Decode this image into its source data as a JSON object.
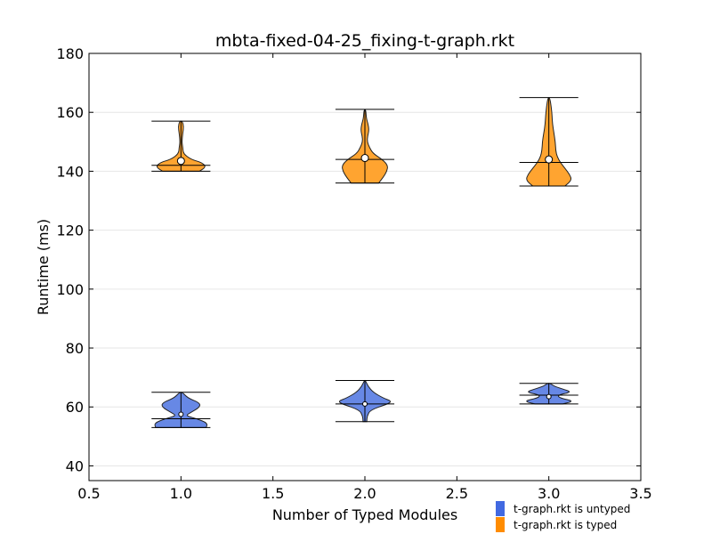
{
  "chart_data": {
    "type": "violin",
    "title": "mbta-fixed-04-25_fixing-t-graph.rkt",
    "xlabel": "Number of Typed Modules",
    "ylabel": "Runtime (ms)",
    "xlim": [
      0.5,
      3.5
    ],
    "ylim": [
      35,
      180
    ],
    "xticks": [
      0.5,
      1.0,
      1.5,
      2.0,
      2.5,
      3.0,
      3.5
    ],
    "xtick_labels": [
      "0.5",
      "1.0",
      "1.5",
      "2.0",
      "2.5",
      "3.0",
      "3.5"
    ],
    "yticks": [
      40,
      60,
      80,
      100,
      120,
      140,
      160,
      180
    ],
    "ytick_labels": [
      "40",
      "60",
      "80",
      "100",
      "120",
      "140",
      "160",
      "180"
    ],
    "grid": "horizontal",
    "legend_position": "bottom-right outside",
    "series": [
      {
        "name": "t-graph.rkt is untyped",
        "color": "#6788e5",
        "legend_color": "#4169e1",
        "violins": [
          {
            "x": 1.0,
            "min": 53,
            "max": 65,
            "median": 56,
            "mean": 57.5,
            "profile": [
              [
                53,
                0.55
              ],
              [
                54.5,
                0.58
              ],
              [
                56,
                0.35
              ],
              [
                57,
                0.1
              ],
              [
                58,
                0.2
              ],
              [
                60,
                0.42
              ],
              [
                61.5,
                0.4
              ],
              [
                63,
                0.15
              ],
              [
                65,
                0.03
              ]
            ]
          },
          {
            "x": 2.0,
            "min": 55,
            "max": 69,
            "median": 61,
            "mean": 61,
            "profile": [
              [
                55,
                0.04
              ],
              [
                57,
                0.05
              ],
              [
                59,
                0.12
              ],
              [
                61,
                0.5
              ],
              [
                62,
                0.58
              ],
              [
                63,
                0.4
              ],
              [
                65,
                0.18
              ],
              [
                67,
                0.07
              ],
              [
                69,
                0.01
              ]
            ]
          },
          {
            "x": 3.0,
            "min": 61,
            "max": 68,
            "median": 64,
            "mean": 63.5,
            "profile": [
              [
                61,
                0.3
              ],
              [
                62,
                0.55
              ],
              [
                63,
                0.25
              ],
              [
                64,
                0.18
              ],
              [
                65,
                0.5
              ],
              [
                66,
                0.32
              ],
              [
                67,
                0.12
              ],
              [
                68,
                0.03
              ]
            ]
          }
        ]
      },
      {
        "name": "t-graph.rkt is typed",
        "color": "#ffa430",
        "legend_color": "#ff8c00",
        "violins": [
          {
            "x": 1.0,
            "min": 140,
            "max": 157,
            "median": 142,
            "mean": 143.5,
            "profile": [
              [
                140,
                0.4
              ],
              [
                141.5,
                0.55
              ],
              [
                143,
                0.45
              ],
              [
                144,
                0.22
              ],
              [
                146,
                0.05
              ],
              [
                148,
                0.04
              ],
              [
                150,
                0.02
              ],
              [
                153,
                0.04
              ],
              [
                155,
                0.06
              ],
              [
                157,
                0.03
              ]
            ]
          },
          {
            "x": 2.0,
            "min": 136,
            "max": 161,
            "median": 144,
            "mean": 144.5,
            "profile": [
              [
                136,
                0.3
              ],
              [
                138,
                0.4
              ],
              [
                140,
                0.48
              ],
              [
                142,
                0.5
              ],
              [
                144,
                0.38
              ],
              [
                146,
                0.18
              ],
              [
                148,
                0.1
              ],
              [
                150,
                0.05
              ],
              [
                152,
                0.06
              ],
              [
                154,
                0.09
              ],
              [
                156,
                0.07
              ],
              [
                158,
                0.03
              ],
              [
                161,
                0.02
              ]
            ]
          },
          {
            "x": 3.0,
            "min": 135,
            "max": 165,
            "median": 143,
            "mean": 144,
            "profile": [
              [
                135,
                0.35
              ],
              [
                137,
                0.5
              ],
              [
                139,
                0.45
              ],
              [
                141,
                0.35
              ],
              [
                143,
                0.25
              ],
              [
                145,
                0.18
              ],
              [
                147,
                0.15
              ],
              [
                150,
                0.14
              ],
              [
                153,
                0.11
              ],
              [
                156,
                0.08
              ],
              [
                159,
                0.07
              ],
              [
                162,
                0.05
              ],
              [
                165,
                0.02
              ]
            ]
          }
        ]
      }
    ]
  }
}
